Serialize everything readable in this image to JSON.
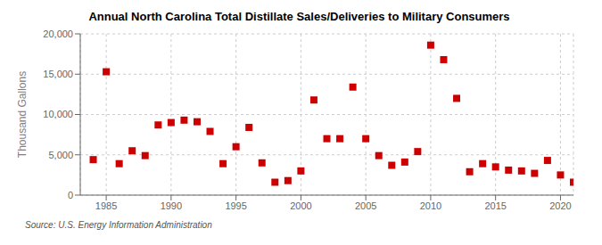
{
  "chart_data": {
    "type": "scatter",
    "title": "Annual North Carolina Total Distillate Sales/Deliveries to Military Consumers",
    "y_label": "Thousand Gallons",
    "annotations": [
      "Source: U.S. Energy Information Administration"
    ],
    "color": "#cc0000",
    "marker": "square",
    "grid": true,
    "xlim": [
      1983,
      2021
    ],
    "ylim": [
      0,
      20000
    ],
    "xticks": [
      1985,
      1990,
      1995,
      2000,
      2005,
      2010,
      2015,
      2020
    ],
    "yticks": [
      0,
      {
        "value": 5000,
        "label": "5,000"
      },
      {
        "value": 10000,
        "label": "10,000"
      },
      {
        "value": 15000,
        "label": "15,000"
      },
      {
        "value": 20000,
        "label": "20,000"
      }
    ],
    "x": [
      1984,
      1985,
      1986,
      1987,
      1988,
      1989,
      1990,
      1991,
      1992,
      1993,
      1994,
      1995,
      1996,
      1997,
      1998,
      1999,
      2000,
      2001,
      2002,
      2003,
      2004,
      2005,
      2006,
      2007,
      2008,
      2009,
      2010,
      2011,
      2012,
      2013,
      2014,
      2015,
      2016,
      2017,
      2018,
      2019,
      2020,
      2021
    ],
    "values": [
      4400,
      15300,
      3900,
      5500,
      4900,
      8700,
      9000,
      9300,
      9100,
      7900,
      3900,
      6000,
      8400,
      4000,
      1600,
      1800,
      3000,
      11800,
      7000,
      7000,
      13400,
      7000,
      4900,
      3700,
      4100,
      5400,
      18600,
      16800,
      12000,
      2900,
      3900,
      3500,
      3100,
      3000,
      2700,
      4300,
      2500,
      1600
    ]
  }
}
